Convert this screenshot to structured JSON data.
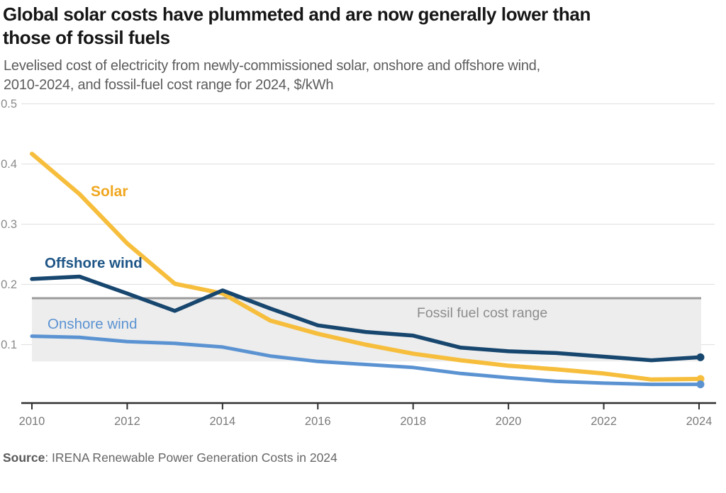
{
  "header": {
    "title_lines": [
      "Global solar costs have plummeted and are now generally lower than",
      "those of fossil fuels"
    ],
    "subtitle_lines": [
      "Levelised cost of electricity from newly-commissioned solar, onshore and offshore wind,",
      "2010-2024, and fossil-fuel cost range for 2024, $/kWh"
    ]
  },
  "source": {
    "bold": "Source",
    "rest": ": IRENA Renewable Power Generation Costs in 2024"
  },
  "chart_data": {
    "type": "line",
    "unit": "$/kWh",
    "x": [
      2010,
      2011,
      2012,
      2013,
      2014,
      2015,
      2016,
      2017,
      2018,
      2019,
      2020,
      2021,
      2022,
      2023,
      2024
    ],
    "x_tick_labels": [
      "2010",
      "2012",
      "2014",
      "2016",
      "2018",
      "2020",
      "2022",
      "2024"
    ],
    "y_ticks": [
      "0.1",
      "0.2",
      "0.3",
      "0.4",
      "0.5"
    ],
    "ylim": [
      0,
      0.5
    ],
    "grid": true,
    "legend_position": "inline-labels",
    "series": [
      {
        "name": "solar",
        "label": "Solar",
        "color": "#F6BE3C",
        "label_color": "#F0A71F",
        "values": [
          0.417,
          0.35,
          0.268,
          0.201,
          0.185,
          0.14,
          0.118,
          0.1,
          0.085,
          0.074,
          0.065,
          0.059,
          0.052,
          0.042,
          0.043
        ]
      },
      {
        "name": "offshore-wind",
        "label": "Offshore wind",
        "color": "#17466E",
        "label_color": "#1D5586",
        "values": [
          0.209,
          0.213,
          0.185,
          0.156,
          0.19,
          0.16,
          0.132,
          0.121,
          0.115,
          0.095,
          0.089,
          0.086,
          0.08,
          0.074,
          0.079
        ]
      },
      {
        "name": "onshore-wind",
        "label": "Onshore wind",
        "color": "#5B93D2",
        "label_color": "#5B93D2",
        "values": [
          0.114,
          0.112,
          0.105,
          0.102,
          0.096,
          0.081,
          0.072,
          0.067,
          0.062,
          0.052,
          0.045,
          0.039,
          0.036,
          0.034,
          0.034
        ]
      }
    ],
    "fossil_range": {
      "label": "Fossil fuel cost range",
      "min": 0.072,
      "max": 0.177,
      "fill": "#EDEDED",
      "line_color": "#9B9B9B",
      "label_color": "#8C8C8C"
    },
    "colors": {
      "grid": "#E3E3E3",
      "axis": "#2F2F2F",
      "tick_label": "#7A7A7A"
    }
  }
}
